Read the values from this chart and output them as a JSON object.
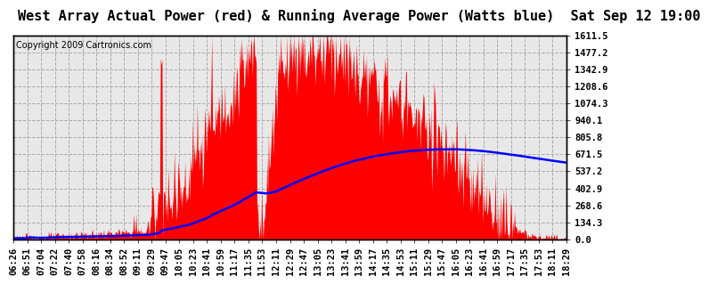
{
  "title": "West Array Actual Power (red) & Running Average Power (Watts blue)  Sat Sep 12 19:00",
  "copyright": "Copyright 2009 Cartronics.com",
  "ylabel_right_ticks": [
    0.0,
    134.3,
    268.6,
    402.9,
    537.2,
    671.5,
    805.8,
    940.1,
    1074.3,
    1208.6,
    1342.9,
    1477.2,
    1611.5
  ],
  "ymax": 1611.5,
  "ymin": 0.0,
  "bg_color": "#ffffff",
  "plot_bg_color": "#e8e8e8",
  "grid_color": "#aaaaaa",
  "actual_color": "#ff0000",
  "avg_color": "#0000ff",
  "title_fontsize": 11,
  "copyright_fontsize": 7,
  "tick_fontsize": 7.5
}
